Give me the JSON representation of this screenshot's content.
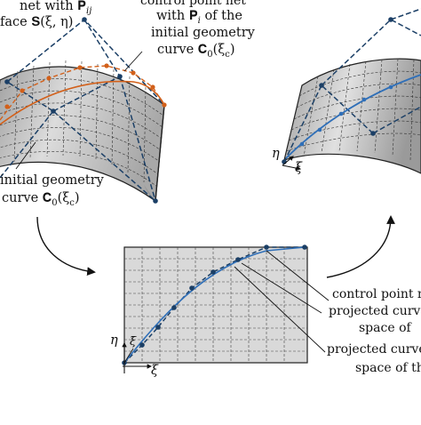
{
  "labels": {
    "net_line1": "net with 𝐏",
    "net_sub": "ij",
    "net_line2": "face 𝐒(ξ, η)",
    "cpn_line1": "control point net",
    "cpn_line2a": "with 𝐏",
    "cpn_line2sub": "i",
    "cpn_line2b": " of the",
    "cpn_line3": "initial geometry",
    "cpn_line4": "curve 𝐂",
    "cpn_line4sub": "0",
    "cpn_line4b": "(ξ",
    "cpn_line4sub2": "c",
    "cpn_line4c": ")",
    "init_line1": "initial geometry",
    "init_line2": "curve 𝐂",
    "init_line2sub": "0",
    "init_line2b": "(ξ",
    "init_line2sub2": "c",
    "init_line2c": ")",
    "right_line1": "control point n",
    "right_line2": "projected curve",
    "right_line3": "space of",
    "right_line4": "projected curve",
    "right_line5": "space of th",
    "axis_eta": "η",
    "axis_xi": "ξ",
    "axis_eta_r": "η",
    "axis_xi_r": "ξ",
    "param_label": "ξ̄"
  },
  "colors": {
    "surface": "#c9c9c9",
    "surface_dark": "#8e8e8e",
    "net": "#1b3f66",
    "initial_curve": "#d2601a",
    "projected_curve": "#2f6fb8",
    "param_fill": "#d9d9d9"
  }
}
